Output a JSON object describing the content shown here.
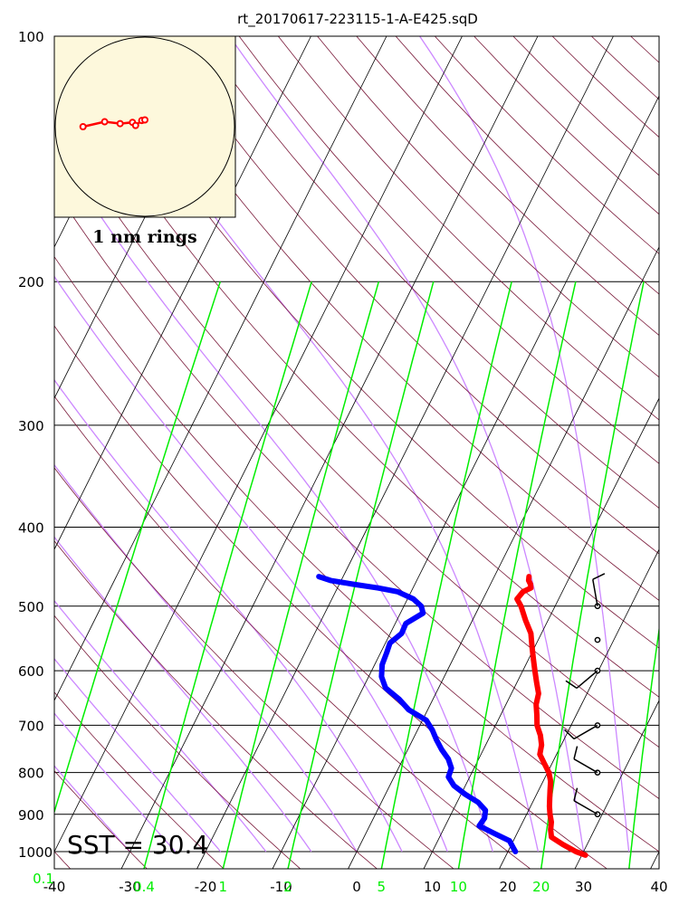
{
  "chart_data": {
    "type": "skew-t",
    "title": "rt_20170617-223115-1-A-E425.sqD",
    "sst_label": "SST = 30.4",
    "hodograph_label": "1 nm rings",
    "pressure_ticks": [
      "100",
      "200",
      "300",
      "400",
      "500",
      "600",
      "700",
      "800",
      "900",
      "1000"
    ],
    "temperature_ticks": [
      "-40",
      "-30",
      "-20",
      "-10",
      "0",
      "10",
      "20",
      "30",
      "40"
    ],
    "mixing_ratio_ticks": [
      "0.1",
      "0.4",
      "1",
      "2",
      "5",
      "10",
      "20"
    ],
    "xlim": [
      -40,
      40
    ],
    "ylim": [
      1050,
      100
    ],
    "y_scale": "log",
    "temperature_profile": {
      "color": "#ff0000",
      "p": [
        1010,
        1000,
        980,
        960,
        940,
        920,
        900,
        880,
        860,
        840,
        820,
        800,
        780,
        760,
        740,
        720,
        700,
        680,
        660,
        640,
        620,
        600,
        580,
        560,
        540,
        520,
        500,
        490,
        480,
        475,
        470,
        465,
        460
      ],
      "t": [
        30.5,
        29.0,
        26.8,
        24.8,
        24.2,
        23.8,
        23.1,
        22.5,
        22.0,
        21.5,
        21.0,
        20.2,
        19.0,
        17.8,
        17.4,
        16.6,
        15.5,
        14.8,
        14.0,
        13.6,
        12.6,
        11.6,
        10.6,
        9.6,
        8.6,
        7.0,
        5.5,
        4.5,
        4.8,
        5.6,
        5.3,
        4.8,
        4.6
      ]
    },
    "dewpoint_profile": {
      "color": "#0000ff",
      "p": [
        1000,
        990,
        970,
        950,
        930,
        910,
        890,
        870,
        850,
        830,
        810,
        790,
        770,
        750,
        730,
        710,
        690,
        670,
        650,
        630,
        610,
        590,
        570,
        555,
        540,
        525,
        510,
        500,
        490,
        480,
        475,
        470,
        465,
        460
      ],
      "td": [
        21.0,
        20.5,
        19.5,
        17.0,
        14.5,
        14.7,
        14.3,
        12.8,
        10.5,
        8.5,
        7.2,
        7.0,
        6.0,
        4.5,
        3.2,
        2.0,
        0.5,
        -2.5,
        -4.5,
        -7.0,
        -8.3,
        -9.0,
        -9.2,
        -9.4,
        -8.5,
        -8.6,
        -7.0,
        -7.7,
        -9.2,
        -11.8,
        -14.6,
        -18.1,
        -21.4,
        -23.2
      ]
    },
    "wind_barbs": [
      {
        "p": 500,
        "dir": 350,
        "speed": 10
      },
      {
        "p": 550,
        "dir": 0,
        "speed": 0
      },
      {
        "p": 600,
        "dir": 230,
        "speed": 10
      },
      {
        "p": 700,
        "dir": 240,
        "speed": 10
      },
      {
        "p": 800,
        "dir": 300,
        "speed": 10
      },
      {
        "p": 900,
        "dir": 300,
        "speed": 10
      }
    ],
    "hodograph": {
      "ring_count": 1,
      "points": [
        [
          -1.0,
          0.0
        ],
        [
          -0.65,
          0.08
        ],
        [
          -0.4,
          0.05
        ],
        [
          -0.2,
          0.07
        ],
        [
          -0.15,
          0.02
        ],
        [
          -0.05,
          0.1
        ],
        [
          0.0,
          0.11
        ]
      ]
    },
    "line_colors": {
      "isotherm": "#000000",
      "dry_adiabat": "#7a1a3a",
      "moist_adiabat": "#cc88ff",
      "mixing_ratio": "#00ee00",
      "isobar": "#000000",
      "hodograph_bg": "#fdf8dc",
      "hodograph_trace": "#ff0000"
    }
  }
}
